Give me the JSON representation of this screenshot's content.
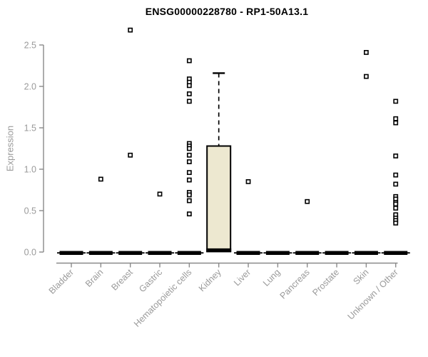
{
  "chart_data": {
    "type": "boxplot",
    "title": "ENSG00000228780 - RP1-50A13.1",
    "ylabel": "Expression",
    "xlabel": "",
    "ylim": [
      0.0,
      2.5
    ],
    "yticks": [
      "0.0",
      "0.5",
      "1.0",
      "1.5",
      "2.0",
      "2.5"
    ],
    "grid": false,
    "legend": null,
    "categories": [
      "Bladder",
      "Brain",
      "Breast",
      "Gastric",
      "Hematopoietic cells",
      "Kidney",
      "Liver",
      "Lung",
      "Pancreas",
      "Prostate",
      "Skin",
      "Unknown / Other"
    ],
    "boxes": [
      {
        "category": "Bladder",
        "q1": 0,
        "median": 0,
        "q3": 0,
        "whisker_low": 0,
        "whisker_high": 0,
        "outliers": []
      },
      {
        "category": "Brain",
        "q1": 0,
        "median": 0,
        "q3": 0,
        "whisker_low": 0,
        "whisker_high": 0,
        "outliers": [
          0.88
        ]
      },
      {
        "category": "Breast",
        "q1": 0,
        "median": 0,
        "q3": 0,
        "whisker_low": 0,
        "whisker_high": 0,
        "outliers": [
          2.68,
          1.17
        ]
      },
      {
        "category": "Gastric",
        "q1": 0,
        "median": 0,
        "q3": 0,
        "whisker_low": 0,
        "whisker_high": 0,
        "outliers": [
          0.7
        ]
      },
      {
        "category": "Hematopoietic cells",
        "q1": 0,
        "median": 0,
        "q3": 0,
        "whisker_low": 0,
        "whisker_high": 0,
        "outliers": [
          2.31,
          2.09,
          2.05,
          2.01,
          1.91,
          1.82,
          1.31,
          1.28,
          1.25,
          1.17,
          1.09,
          0.96,
          0.87,
          0.72,
          0.69,
          0.62,
          0.46
        ]
      },
      {
        "category": "Kidney",
        "q1": 0.01,
        "median": 0.02,
        "q3": 1.28,
        "whisker_low": 0,
        "whisker_high": 2.16,
        "outliers": []
      },
      {
        "category": "Liver",
        "q1": 0,
        "median": 0,
        "q3": 0,
        "whisker_low": 0,
        "whisker_high": 0,
        "outliers": [
          0.85
        ]
      },
      {
        "category": "Lung",
        "q1": 0,
        "median": 0,
        "q3": 0,
        "whisker_low": 0,
        "whisker_high": 0,
        "outliers": []
      },
      {
        "category": "Pancreas",
        "q1": 0,
        "median": 0,
        "q3": 0,
        "whisker_low": 0,
        "whisker_high": 0,
        "outliers": [
          0.61
        ]
      },
      {
        "category": "Prostate",
        "q1": 0,
        "median": 0,
        "q3": 0,
        "whisker_low": 0,
        "whisker_high": 0,
        "outliers": []
      },
      {
        "category": "Skin",
        "q1": 0,
        "median": 0,
        "q3": 0,
        "whisker_low": 0,
        "whisker_high": 0,
        "outliers": [
          2.41,
          2.12
        ]
      },
      {
        "category": "Unknown / Other",
        "q1": 0,
        "median": 0,
        "q3": 0,
        "whisker_low": 0,
        "whisker_high": 0,
        "outliers": [
          1.82,
          1.61,
          1.56,
          1.16,
          0.93,
          0.82,
          0.67,
          0.64,
          0.6,
          0.58,
          0.53,
          0.45,
          0.41,
          0.38,
          0.35
        ]
      }
    ],
    "colors": {
      "box_fill": "#EDE8D0",
      "box_border": "#000000",
      "median": "#000000",
      "flat_bar": "#000000",
      "outlier_fill": "#FFFFFF",
      "outlier_border": "#000000",
      "axis_line": "#8A8A8A",
      "axis_text": "#9A9A9A",
      "title_color": "#000000",
      "background": "#FFFFFF"
    }
  }
}
